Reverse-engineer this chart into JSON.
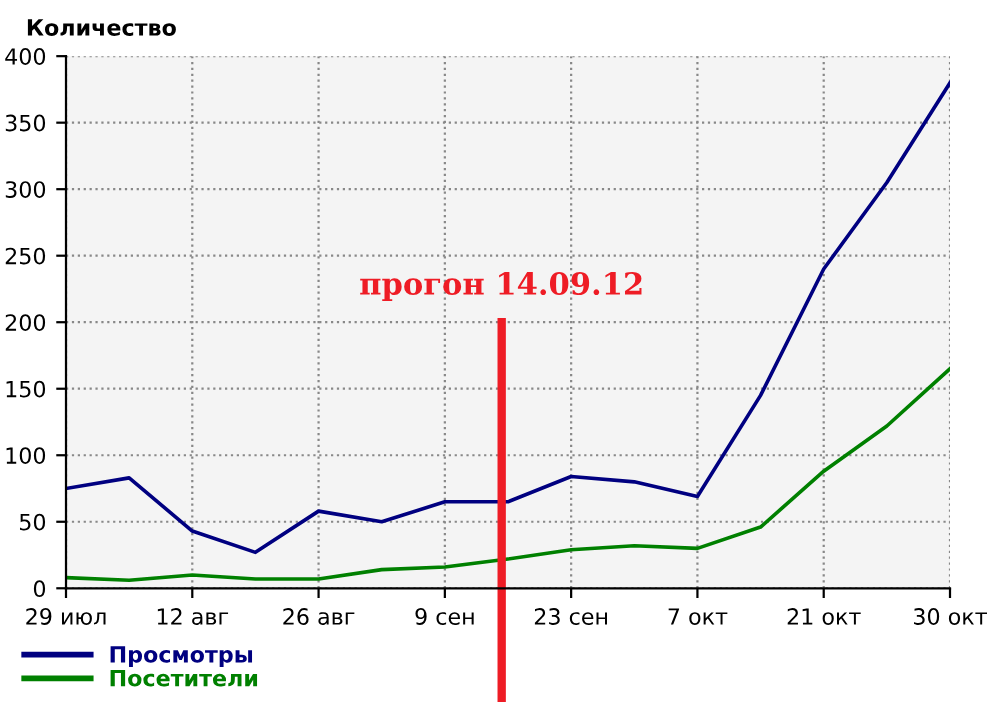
{
  "chart_data": {
    "type": "line",
    "ylabel": "Количество",
    "categories": [
      "29 июл",
      null,
      "12 авг",
      null,
      "26 авг",
      null,
      "9 сен",
      null,
      "23 сен",
      null,
      "7 окт",
      null,
      "21 окт",
      null,
      "30 окт"
    ],
    "series": [
      {
        "name": "Просмотры",
        "color": "#000080",
        "values": [
          75,
          83,
          43,
          27,
          58,
          50,
          65,
          65,
          84,
          80,
          69,
          145,
          240,
          305,
          380
        ]
      },
      {
        "name": "Посетители",
        "color": "#008000",
        "values": [
          8,
          6,
          10,
          7,
          7,
          14,
          16,
          22,
          29,
          32,
          30,
          46,
          88,
          122,
          165
        ]
      }
    ],
    "ylim": [
      0,
      400
    ],
    "yticks": [
      0,
      50,
      100,
      150,
      200,
      250,
      300,
      350,
      400
    ],
    "annotations": [
      "прогон 14.09.12"
    ],
    "grid": true,
    "legend": "bottom left",
    "marker": "none",
    "line_style": "solid"
  }
}
